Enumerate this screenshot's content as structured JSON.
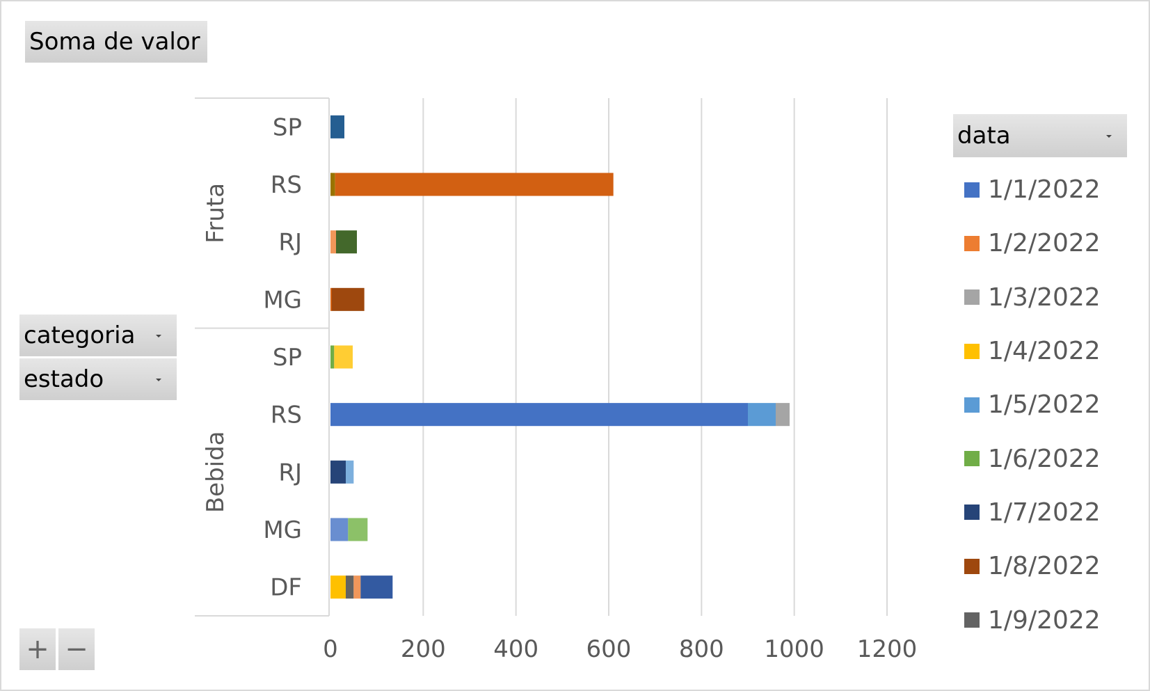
{
  "fields": {
    "value": "Soma de valor",
    "legend_field": "data",
    "rows": [
      "categoria",
      "estado"
    ]
  },
  "buttons": {
    "expand": "+",
    "collapse": "−"
  },
  "colors": {
    "1/1/2022": "#4472C4",
    "1/2/2022": "#ED7D31",
    "1/3/2022": "#A5A5A5",
    "1/4/2022": "#FFC000",
    "1/5/2022": "#5B9BD5",
    "1/6/2022": "#70AD47",
    "1/7/2022": "#264478",
    "1/8/2022": "#9E480E",
    "1/9/2022": "#636363",
    "c10": "#997300",
    "c11": "#255E91",
    "c12": "#43682B",
    "c13": "#698ED0",
    "c14": "#F1975A",
    "c15": "#B7B7B7",
    "c16": "#FFCD33",
    "c17": "#7CAFDD",
    "c18": "#8CC168",
    "c19": "#335AA1",
    "c20": "#D26012"
  },
  "chart_data": {
    "type": "bar",
    "orientation": "horizontal",
    "stacked": true,
    "title": "",
    "xlabel": "",
    "ylabel": "",
    "xlim": [
      0,
      1200
    ],
    "xticks": [
      0,
      200,
      400,
      600,
      800,
      1000,
      1200
    ],
    "grid": true,
    "legend": {
      "title": "data",
      "position": "right",
      "entries": [
        "1/1/2022",
        "1/2/2022",
        "1/3/2022",
        "1/4/2022",
        "1/5/2022",
        "1/6/2022",
        "1/7/2022",
        "1/8/2022",
        "1/9/2022"
      ]
    },
    "groups": [
      {
        "name": "Fruta",
        "rows": [
          {
            "label": "SP",
            "segments": [
              {
                "color": "c11",
                "value": 30
              }
            ]
          },
          {
            "label": "RS",
            "segments": [
              {
                "color": "c10",
                "value": 10
              },
              {
                "color": "c20",
                "value": 600
              }
            ]
          },
          {
            "label": "RJ",
            "segments": [
              {
                "color": "c14",
                "value": 12
              },
              {
                "color": "c12",
                "value": 45
              }
            ]
          },
          {
            "label": "MG",
            "segments": [
              {
                "color": "c20",
                "value": 3
              },
              {
                "color": "1/8/2022",
                "value": 70
              }
            ]
          }
        ]
      },
      {
        "name": "Bebida",
        "rows": [
          {
            "label": "SP",
            "segments": [
              {
                "color": "1/6/2022",
                "value": 8
              },
              {
                "color": "c16",
                "value": 40
              }
            ]
          },
          {
            "label": "RS",
            "segments": [
              {
                "color": "1/1/2022",
                "value": 900
              },
              {
                "color": "1/5/2022",
                "value": 60
              },
              {
                "color": "1/3/2022",
                "value": 30
              }
            ]
          },
          {
            "label": "RJ",
            "segments": [
              {
                "color": "1/7/2022",
                "value": 33
              },
              {
                "color": "c17",
                "value": 17
              }
            ]
          },
          {
            "label": "MG",
            "segments": [
              {
                "color": "c13",
                "value": 38
              },
              {
                "color": "c18",
                "value": 42
              }
            ]
          },
          {
            "label": "DF",
            "segments": [
              {
                "color": "1/4/2022",
                "value": 33
              },
              {
                "color": "1/9/2022",
                "value": 17
              },
              {
                "color": "c14",
                "value": 15
              },
              {
                "color": "c19",
                "value": 69
              }
            ]
          }
        ]
      }
    ]
  }
}
